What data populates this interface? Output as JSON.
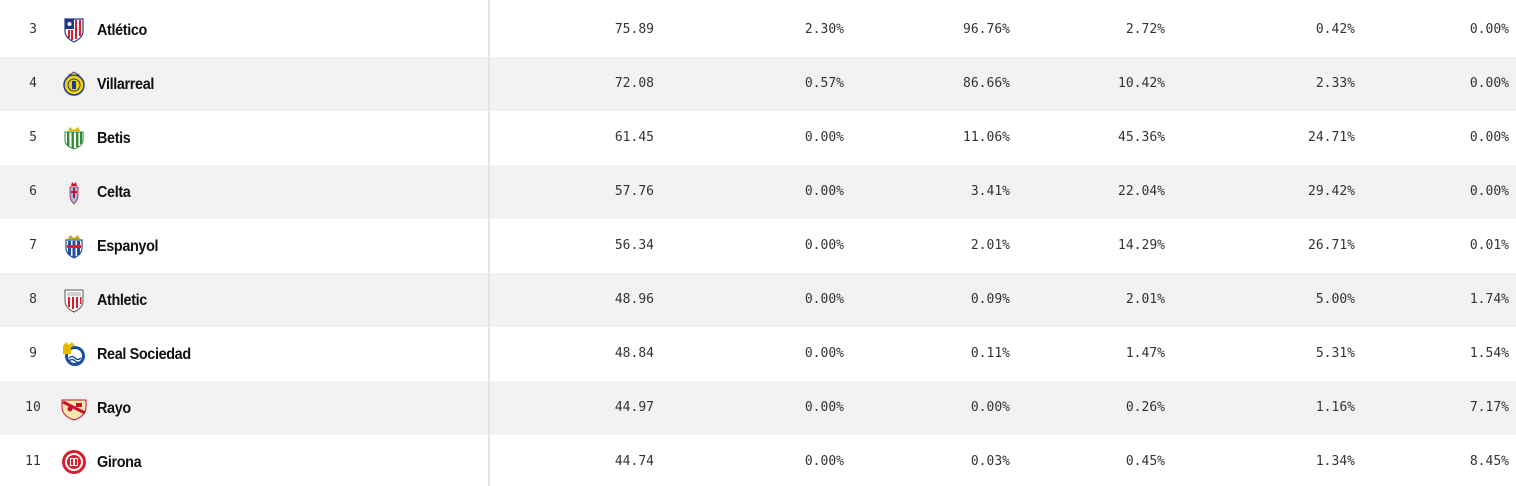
{
  "rows": [
    {
      "rank": "3",
      "team": "Atlético",
      "logo": "atletico-crest-icon",
      "c1": "75.89",
      "c2": "2.30%",
      "c3": "96.76%",
      "c4": "2.72%",
      "c5": "0.42%",
      "c6": "0.00%"
    },
    {
      "rank": "4",
      "team": "Villarreal",
      "logo": "villarreal-crest-icon",
      "c1": "72.08",
      "c2": "0.57%",
      "c3": "86.66%",
      "c4": "10.42%",
      "c5": "2.33%",
      "c6": "0.00%"
    },
    {
      "rank": "5",
      "team": "Betis",
      "logo": "betis-crest-icon",
      "c1": "61.45",
      "c2": "0.00%",
      "c3": "11.06%",
      "c4": "45.36%",
      "c5": "24.71%",
      "c6": "0.00%"
    },
    {
      "rank": "6",
      "team": "Celta",
      "logo": "celta-crest-icon",
      "c1": "57.76",
      "c2": "0.00%",
      "c3": "3.41%",
      "c4": "22.04%",
      "c5": "29.42%",
      "c6": "0.00%"
    },
    {
      "rank": "7",
      "team": "Espanyol",
      "logo": "espanyol-crest-icon",
      "c1": "56.34",
      "c2": "0.00%",
      "c3": "2.01%",
      "c4": "14.29%",
      "c5": "26.71%",
      "c6": "0.01%"
    },
    {
      "rank": "8",
      "team": "Athletic",
      "logo": "athletic-crest-icon",
      "c1": "48.96",
      "c2": "0.00%",
      "c3": "0.09%",
      "c4": "2.01%",
      "c5": "5.00%",
      "c6": "1.74%"
    },
    {
      "rank": "9",
      "team": "Real Sociedad",
      "logo": "real-sociedad-crest-icon",
      "c1": "48.84",
      "c2": "0.00%",
      "c3": "0.11%",
      "c4": "1.47%",
      "c5": "5.31%",
      "c6": "1.54%"
    },
    {
      "rank": "10",
      "team": "Rayo",
      "logo": "rayo-crest-icon",
      "c1": "44.97",
      "c2": "0.00%",
      "c3": "0.00%",
      "c4": "0.26%",
      "c5": "1.16%",
      "c6": "7.17%"
    },
    {
      "rank": "11",
      "team": "Girona",
      "logo": "girona-crest-icon",
      "c1": "44.74",
      "c2": "0.00%",
      "c3": "0.03%",
      "c4": "0.45%",
      "c5": "1.34%",
      "c6": "8.45%"
    }
  ],
  "colors": {
    "row_alt": "#f2f2f2",
    "row_base": "#ffffff",
    "divider": "#e3e3e3",
    "text": "#333333"
  }
}
